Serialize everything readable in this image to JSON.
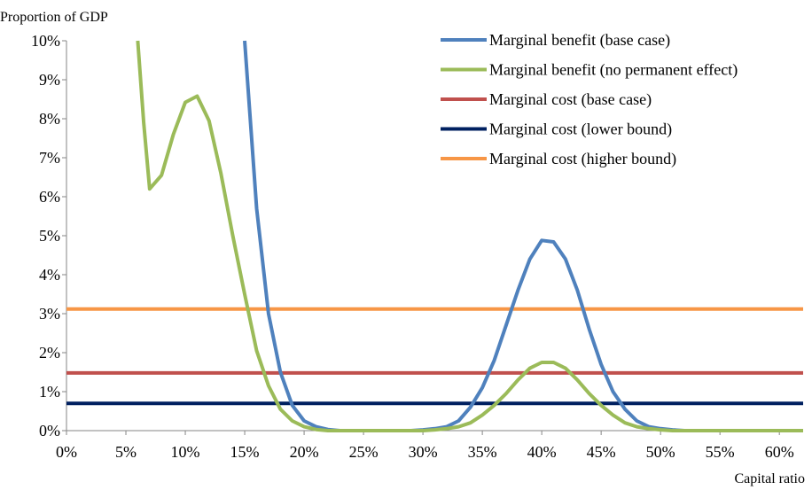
{
  "chart_data": {
    "type": "line",
    "ylabel": "Proportion of GDP",
    "xlabel": "Capital ratio",
    "xlim": [
      0,
      62
    ],
    "ylim": [
      0,
      10
    ],
    "x_ticks": [
      "0%",
      "5%",
      "10%",
      "15%",
      "20%",
      "25%",
      "30%",
      "35%",
      "40%",
      "45%",
      "50%",
      "55%",
      "60%"
    ],
    "y_ticks": [
      "0%",
      "1%",
      "2%",
      "3%",
      "4%",
      "5%",
      "6%",
      "7%",
      "8%",
      "9%",
      "10%"
    ],
    "grid": false,
    "legend_position": "top-right",
    "series": [
      {
        "name": "Marginal benefit (base case)",
        "color": "#4F81BD",
        "x": [
          15,
          16,
          17,
          18,
          19,
          20,
          21,
          22,
          23,
          24,
          25,
          26,
          27,
          28,
          29,
          30,
          31,
          32,
          33,
          34,
          35,
          36,
          37,
          38,
          39,
          40,
          41,
          42,
          43,
          44,
          45,
          46,
          47,
          48,
          49,
          50,
          51,
          52,
          53,
          54,
          55,
          56,
          57,
          58,
          59,
          60,
          61,
          62
        ],
        "y": [
          10,
          5.7,
          3.0,
          1.5,
          0.65,
          0.25,
          0.1,
          0.03,
          0,
          0,
          0,
          0,
          0,
          0,
          0,
          0.02,
          0.05,
          0.1,
          0.25,
          0.6,
          1.1,
          1.8,
          2.7,
          3.6,
          4.4,
          4.88,
          4.84,
          4.4,
          3.6,
          2.6,
          1.7,
          1.0,
          0.55,
          0.25,
          0.1,
          0.05,
          0.02,
          0,
          0,
          0,
          0,
          0,
          0,
          0,
          0,
          0,
          0,
          0
        ]
      },
      {
        "name": "Marginal benefit (no permanent effect)",
        "color": "#9BBB59",
        "x": [
          6,
          6.5,
          7,
          8,
          9,
          10,
          11,
          12,
          13,
          14,
          15,
          16,
          17,
          18,
          19,
          20,
          21,
          22,
          23,
          24,
          25,
          26,
          27,
          28,
          29,
          30,
          31,
          32,
          33,
          34,
          35,
          36,
          37,
          38,
          39,
          40,
          41,
          42,
          43,
          44,
          45,
          46,
          47,
          48,
          49,
          50,
          51,
          52,
          53,
          54,
          55,
          56,
          57,
          58,
          59,
          60,
          61,
          62
        ],
        "y": [
          10,
          7.9,
          6.2,
          6.55,
          7.6,
          8.42,
          8.58,
          7.95,
          6.6,
          5.0,
          3.5,
          2.05,
          1.15,
          0.55,
          0.25,
          0.1,
          0.03,
          0,
          0,
          0,
          0,
          0,
          0,
          0,
          0,
          0,
          0.02,
          0.05,
          0.1,
          0.2,
          0.4,
          0.65,
          0.95,
          1.3,
          1.6,
          1.75,
          1.75,
          1.6,
          1.3,
          0.95,
          0.65,
          0.4,
          0.2,
          0.1,
          0.05,
          0.02,
          0,
          0,
          0,
          0,
          0,
          0,
          0,
          0,
          0,
          0,
          0,
          0
        ]
      },
      {
        "name": "Marginal cost (base case)",
        "color": "#C0504D",
        "x": [
          0,
          62
        ],
        "y": [
          1.48,
          1.48
        ]
      },
      {
        "name": "Marginal cost (lower bound)",
        "color": "#002060",
        "x": [
          0,
          62
        ],
        "y": [
          0.7,
          0.7
        ]
      },
      {
        "name": "Marginal cost (higher bound)",
        "color": "#F79646",
        "x": [
          0,
          62
        ],
        "y": [
          3.12,
          3.12
        ]
      }
    ],
    "legend_labels": [
      "Marginal benefit (base case)",
      "Marginal benefit (no permanent effect)",
      "Marginal cost (base case)",
      "Marginal cost (lower bound)",
      "Marginal cost (higher bound)"
    ]
  }
}
